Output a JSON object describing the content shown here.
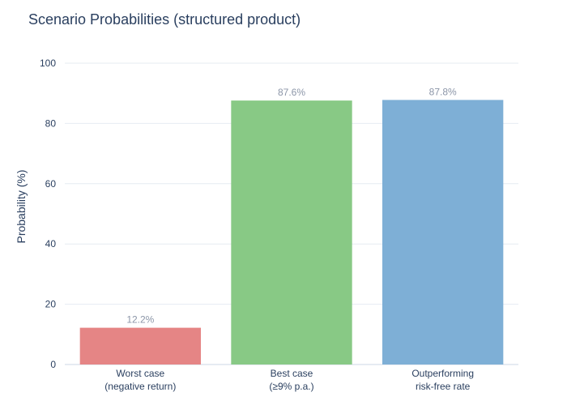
{
  "chart_data": {
    "type": "bar",
    "title": "Scenario Probabilities (structured product)",
    "xlabel": "",
    "ylabel": "Probability (%)",
    "ylim": [
      0,
      100
    ],
    "yticks": [
      "0",
      "20",
      "40",
      "60",
      "80",
      "100"
    ],
    "ytick_values": [
      0,
      20,
      40,
      60,
      80,
      100
    ],
    "grid": true,
    "legend": "none",
    "categories": [
      [
        "Worst case",
        "(negative return)"
      ],
      [
        "Best case",
        "(≥9% p.a.)"
      ],
      [
        "Outperforming",
        "risk-free rate"
      ]
    ],
    "values": [
      12.2,
      87.6,
      87.8
    ],
    "data_labels": [
      "12.2%",
      "87.6%",
      "87.8%"
    ],
    "colors": [
      "#e58585",
      "#88c985",
      "#7eafd6"
    ]
  }
}
